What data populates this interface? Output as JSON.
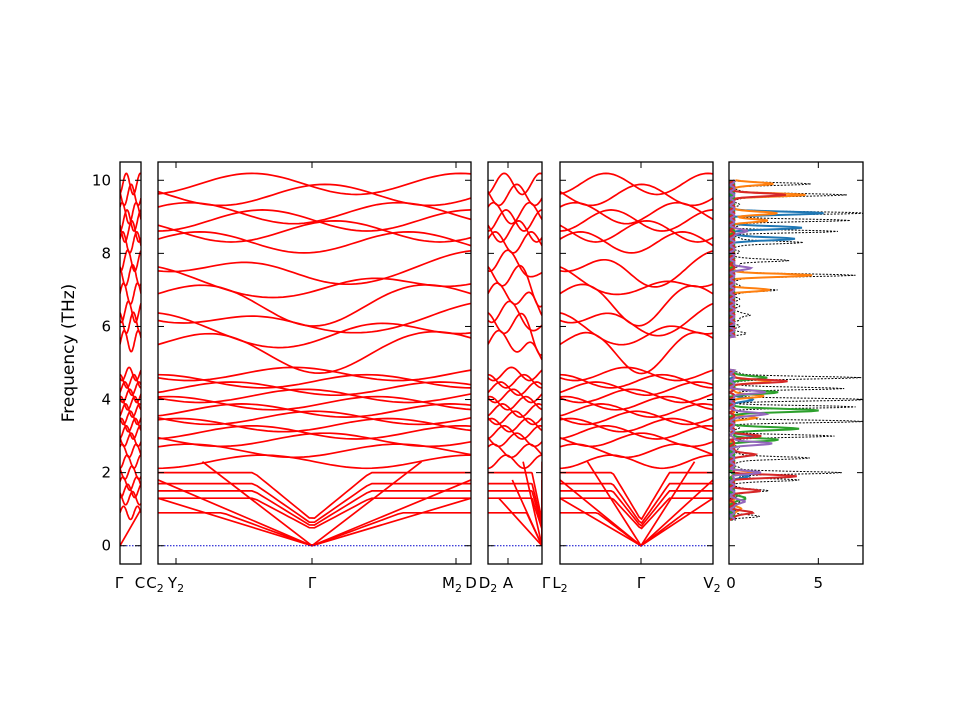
{
  "chart_data": {
    "type": "line",
    "ylabel": "Frequency (THz)",
    "ylim": [
      -0.5,
      10.5
    ],
    "yticks": [
      0,
      2,
      4,
      6,
      8,
      10
    ],
    "grid": false,
    "colors": {
      "bands": "#ff0000",
      "zero_line": "#0000cc",
      "dos_total": "#000000",
      "dos_series": [
        "#1f77b4",
        "#ff7f0e",
        "#2ca02c",
        "#d62728",
        "#9467bd"
      ]
    },
    "band_segments": [
      {
        "id": "seg1",
        "xticks": [
          {
            "base": "Γ",
            "sub": ""
          },
          {
            "base": "C",
            "sub": ""
          }
        ]
      },
      {
        "id": "seg2",
        "xticks": [
          {
            "base": "C",
            "sub": "2"
          },
          {
            "base": "Y",
            "sub": "2"
          },
          {
            "base": "Γ",
            "sub": ""
          },
          {
            "base": "M",
            "sub": "2"
          },
          {
            "base": "D",
            "sub": ""
          }
        ]
      },
      {
        "id": "seg3",
        "xticks": [
          {
            "base": "D",
            "sub": "2"
          },
          {
            "base": "A",
            "sub": ""
          },
          {
            "base": "Γ",
            "sub": ""
          }
        ]
      },
      {
        "id": "seg4",
        "xticks": [
          {
            "base": "L",
            "sub": "2"
          },
          {
            "base": "Γ",
            "sub": ""
          },
          {
            "base": "V",
            "sub": "2"
          }
        ]
      }
    ],
    "flat_band_levels": [
      0.9,
      1.3,
      1.5,
      1.7,
      2.0,
      2.3,
      2.6,
      2.9,
      3.1,
      3.3,
      3.5,
      3.7,
      3.9,
      4.1,
      4.3,
      4.5,
      4.7,
      5.6,
      6.1,
      6.4,
      6.9,
      7.4,
      7.8,
      8.3,
      8.6,
      8.9,
      9.1,
      9.6,
      9.9
    ],
    "dos": {
      "xlim": [
        0,
        7.5
      ],
      "xticks": [
        0,
        5
      ],
      "series": [
        {
          "color": "#000000",
          "peaks": [
            [
              0.8,
              1.2
            ],
            [
              1.5,
              2.0
            ],
            [
              1.8,
              3.5
            ],
            [
              2.0,
              6.0
            ],
            [
              2.4,
              4.5
            ],
            [
              3.0,
              5.5
            ],
            [
              3.4,
              7.0
            ],
            [
              3.8,
              6.5
            ],
            [
              4.0,
              7.3
            ],
            [
              4.3,
              6.0
            ],
            [
              4.6,
              7.2
            ],
            [
              5.8,
              0.4
            ],
            [
              6.3,
              1.0
            ],
            [
              7.0,
              2.5
            ],
            [
              7.4,
              7.0
            ],
            [
              7.8,
              3.0
            ],
            [
              8.3,
              4.0
            ],
            [
              8.6,
              5.5
            ],
            [
              8.9,
              6.5
            ],
            [
              9.1,
              7.3
            ],
            [
              9.6,
              6.5
            ],
            [
              9.9,
              4.0
            ]
          ]
        },
        {
          "color": "#1f77b4",
          "peaks": [
            [
              1.9,
              0.8
            ],
            [
              3.0,
              1.0
            ],
            [
              4.0,
              1.3
            ],
            [
              8.4,
              3.5
            ],
            [
              8.7,
              3.8
            ],
            [
              9.1,
              5.0
            ]
          ]
        },
        {
          "color": "#ff7f0e",
          "peaks": [
            [
              1.0,
              0.6
            ],
            [
              2.0,
              1.0
            ],
            [
              3.5,
              1.2
            ],
            [
              4.1,
              1.8
            ],
            [
              4.5,
              2.2
            ],
            [
              7.0,
              2.0
            ],
            [
              7.4,
              4.4
            ],
            [
              8.9,
              2.0
            ],
            [
              9.1,
              2.6
            ],
            [
              9.6,
              4.0
            ],
            [
              9.9,
              2.3
            ]
          ]
        },
        {
          "color": "#2ca02c",
          "peaks": [
            [
              1.3,
              0.9
            ],
            [
              2.9,
              2.5
            ],
            [
              3.2,
              3.7
            ],
            [
              3.7,
              5.0
            ],
            [
              4.2,
              2.5
            ],
            [
              4.6,
              2.0
            ]
          ]
        },
        {
          "color": "#d62728",
          "peaks": [
            [
              0.9,
              1.2
            ],
            [
              1.5,
              1.5
            ],
            [
              1.9,
              3.5
            ],
            [
              2.5,
              1.3
            ],
            [
              3.0,
              1.5
            ],
            [
              4.5,
              3.0
            ],
            [
              9.6,
              3.0
            ]
          ]
        },
        {
          "color": "#9467bd",
          "peaks": [
            [
              1.2,
              0.8
            ],
            [
              2.0,
              1.5
            ],
            [
              2.8,
              2.2
            ],
            [
              3.6,
              2.0
            ],
            [
              4.2,
              1.8
            ],
            [
              7.6,
              1.0
            ],
            [
              8.6,
              0.9
            ]
          ]
        }
      ]
    }
  }
}
